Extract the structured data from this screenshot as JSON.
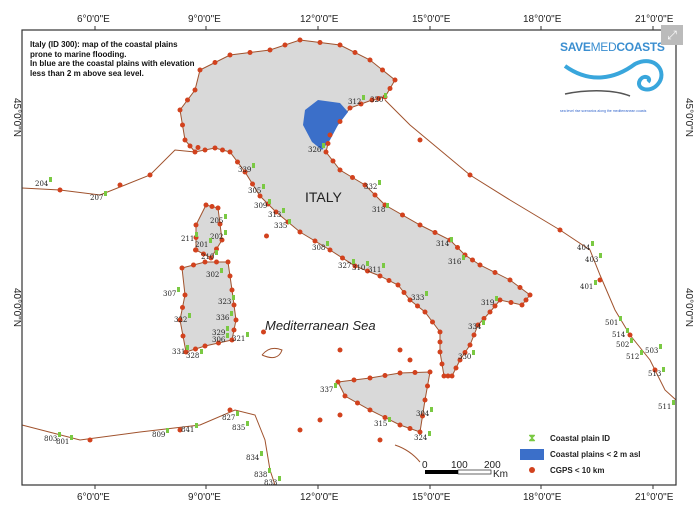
{
  "map": {
    "description_note": [
      "Italy (ID 300): map of the coastal plains",
      "prone to marine flooding.",
      "In blue are the coastal plains with elevation",
      "less than 2 m above sea level."
    ],
    "country_label": "ITALY",
    "sea_label": "Mediterranean Sea",
    "lon_ticks": [
      "6°0'0\"E",
      "9°0'0\"E",
      "12°0'0\"E",
      "15°0'0\"E",
      "18°0'0\"E",
      "21°0'0\"E"
    ],
    "lat_ticks": [
      "45°0'0\"N",
      "40°0'0\"N"
    ],
    "scale_bar": {
      "ticks": [
        "0",
        "100",
        "200"
      ],
      "unit": "Km"
    },
    "plain_ids": [
      "204",
      "207",
      "339",
      "305",
      "309",
      "313",
      "335",
      "205",
      "202",
      "211",
      "201",
      "210",
      "308",
      "327",
      "310",
      "311",
      "307",
      "302",
      "323",
      "322",
      "336",
      "329",
      "306",
      "321",
      "331",
      "328",
      "312",
      "320",
      "326",
      "332",
      "318",
      "314",
      "316",
      "333",
      "319",
      "334",
      "330",
      "337",
      "304",
      "315",
      "324",
      "404",
      "403",
      "401",
      "803",
      "801",
      "809",
      "841",
      "827",
      "835",
      "834",
      "838",
      "833",
      "502",
      "512",
      "503",
      "513",
      "511",
      "501",
      "514"
    ],
    "colors": {
      "land": "#d9d9d9",
      "flood_plain": "#3b6fc9",
      "cgps": "#d2421e",
      "plain_marker": "#7ac943",
      "coast": "#a0522d"
    }
  },
  "logo": {
    "text_bold_1": "SAVE",
    "text_light": "MED",
    "text_bold_2": "COASTS",
    "tagline": "sea level rise scenarios along the mediterranean coasts"
  },
  "legend": [
    {
      "icon": "green-marker",
      "label": "Coastal plain ID"
    },
    {
      "icon": "blue-box",
      "label": "Coastal plains < 2 m asl"
    },
    {
      "icon": "red-dot",
      "label": "CGPS < 10 km"
    }
  ],
  "ui": {
    "expand_icon": "expand-icon"
  }
}
